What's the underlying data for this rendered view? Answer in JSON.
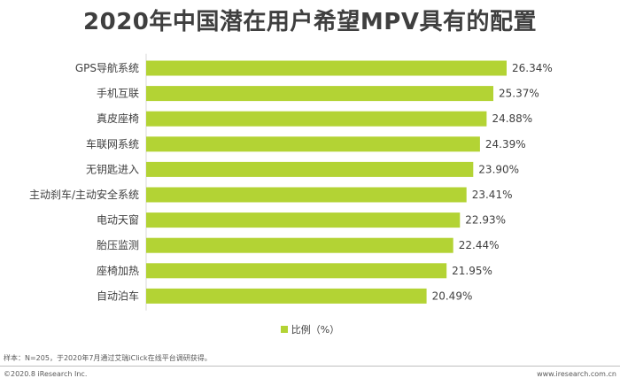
{
  "chart_data": {
    "type": "bar",
    "orientation": "horizontal",
    "title": "2020年中国潜在用户希望MPV具有的配置",
    "categories": [
      "GPS导航系统",
      "手机互联",
      "真皮座椅",
      "车联网系统",
      "无钥匙进入",
      "主动刹车/主动安全系统",
      "电动天窗",
      "胎压监测",
      "座椅加热",
      "自动泊车"
    ],
    "values": [
      26.34,
      25.37,
      24.88,
      24.39,
      23.9,
      23.41,
      22.93,
      22.44,
      21.95,
      20.49
    ],
    "value_labels": [
      "26.34%",
      "25.37%",
      "24.88%",
      "24.39%",
      "23.90%",
      "23.41%",
      "22.93%",
      "22.44%",
      "21.95%",
      "20.49%"
    ],
    "series": [
      {
        "name": "比例（%）",
        "color": "#b3d334"
      }
    ],
    "legend": "bottom-center",
    "grid": false
  },
  "footnote": "样本：N=205，于2020年7月通过艾瑞iClick在线平台调研获得。",
  "copyright": "©2020.8 iResearch Inc.",
  "website": "www.iresearch.com.cn"
}
